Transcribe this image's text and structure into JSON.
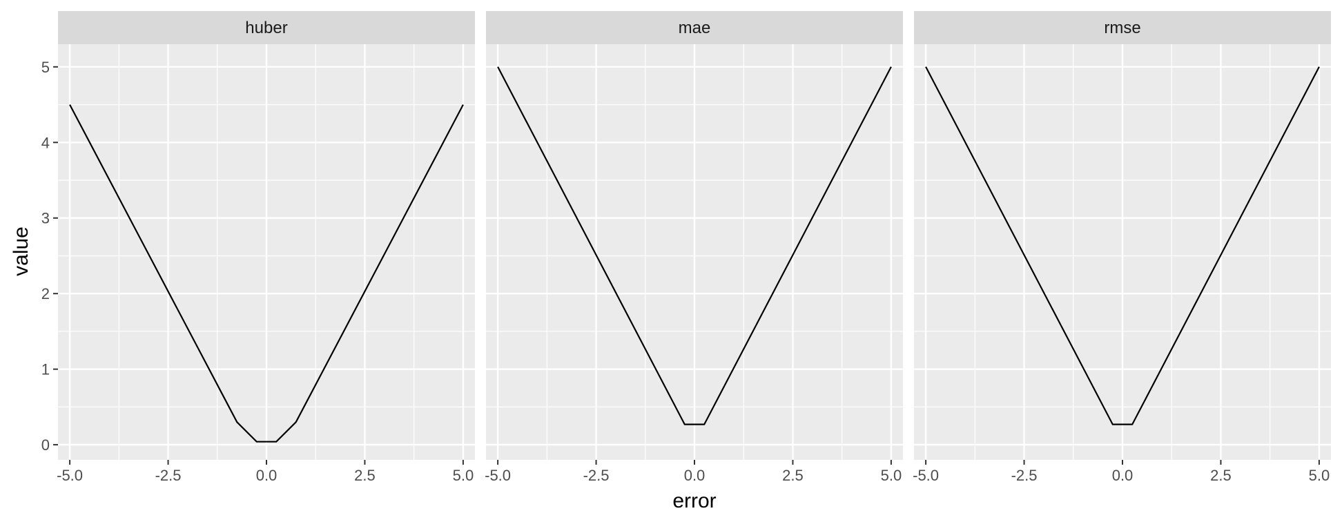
{
  "chart_data": {
    "type": "line",
    "facet_by": "loss function",
    "xlabel": "error",
    "ylabel": "value",
    "xlim": [
      -5.3,
      5.3
    ],
    "ylim": [
      -0.2,
      5.3
    ],
    "x_ticks": [
      -5.0,
      -2.5,
      0.0,
      2.5,
      5.0
    ],
    "x_tick_labels": [
      "-5.0",
      "-2.5",
      "0.0",
      "2.5",
      "5.0"
    ],
    "y_ticks": [
      0,
      1,
      2,
      3,
      4,
      5
    ],
    "y_tick_labels": [
      "0",
      "1",
      "2",
      "3",
      "4",
      "5"
    ],
    "grid": true,
    "colors": {
      "panel_bg": "#ebebeb",
      "strip_bg": "#d9d9d9",
      "grid": "#ffffff",
      "line": "#000000"
    },
    "panels": [
      {
        "strip": "huber",
        "x": [
          -5.0,
          -0.75,
          -0.25,
          0.25,
          0.75,
          5.0
        ],
        "y": [
          4.5,
          0.3,
          0.04,
          0.04,
          0.3,
          4.5
        ]
      },
      {
        "strip": "mae",
        "x": [
          -5.0,
          -0.25,
          0.25,
          5.0
        ],
        "y": [
          5.0,
          0.27,
          0.27,
          5.0
        ]
      },
      {
        "strip": "rmse",
        "x": [
          -5.0,
          -0.25,
          0.25,
          5.0
        ],
        "y": [
          5.0,
          0.27,
          0.27,
          5.0
        ]
      }
    ]
  }
}
